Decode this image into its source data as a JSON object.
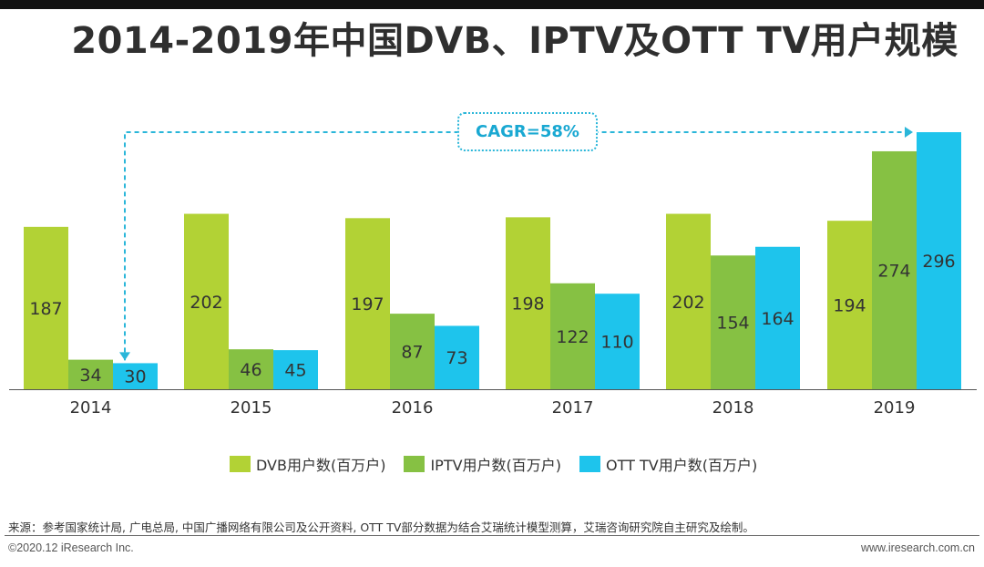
{
  "title": "2014-2019年中国DVB、IPTV及OTT TV用户规模",
  "annotation": {
    "label": "CAGR=58%"
  },
  "footer": {
    "source": "来源：参考国家统计局, 广电总局, 中国广播网络有限公司及公开资料, OTT TV部分数据为结合艾瑞统计模型测算，艾瑞咨询研究院自主研究及绘制。",
    "copyright": "©2020.12 iResearch Inc.",
    "website": "www.iresearch.com.cn"
  },
  "colors": {
    "dvb": "#b2d235",
    "iptv": "#86c143",
    "ott": "#1ec4ec",
    "accent": "#2ab6d9"
  },
  "chart_data": {
    "type": "bar",
    "title": "2014-2019年中国DVB、IPTV及OTT TV用户规模",
    "categories": [
      "2014",
      "2015",
      "2016",
      "2017",
      "2018",
      "2019"
    ],
    "series": [
      {
        "name": "DVB用户数(百万户)",
        "values": [
          187,
          202,
          197,
          198,
          202,
          194
        ]
      },
      {
        "name": "IPTV用户数(百万户)",
        "values": [
          34,
          46,
          87,
          122,
          154,
          274
        ]
      },
      {
        "name": "OTT TV用户数(百万户)",
        "values": [
          30,
          45,
          73,
          110,
          164,
          296
        ]
      }
    ],
    "ylim": [
      0,
      296
    ],
    "grid": false,
    "legend": "bottom",
    "xlabel": "",
    "ylabel": ""
  }
}
